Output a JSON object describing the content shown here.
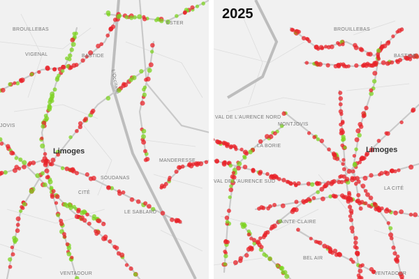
{
  "panels": [
    {
      "labels": [
        "BROUILLEBAS",
        "VIGENAL",
        "BASTIDE",
        "ESTER",
        "L'Occitane",
        "JOVIS",
        "Limoges",
        "MANDERESSE",
        "SOUDANAS",
        "LE SABLARD",
        "CITÉ",
        "VENTADOUR"
      ]
    },
    {
      "title": "2025",
      "labels": [
        "BROUILLEBAS",
        "BASTIDE",
        "VAL DE L'AURENCE NORD",
        "MONTJOVIS",
        "LA BORIE",
        "Limoges",
        "VAL DE L'AURENCE SUD",
        "SAINTE-CLAIRE",
        "LA CITÉ",
        "BEL AIR",
        "VENTADOUR"
      ]
    }
  ]
}
